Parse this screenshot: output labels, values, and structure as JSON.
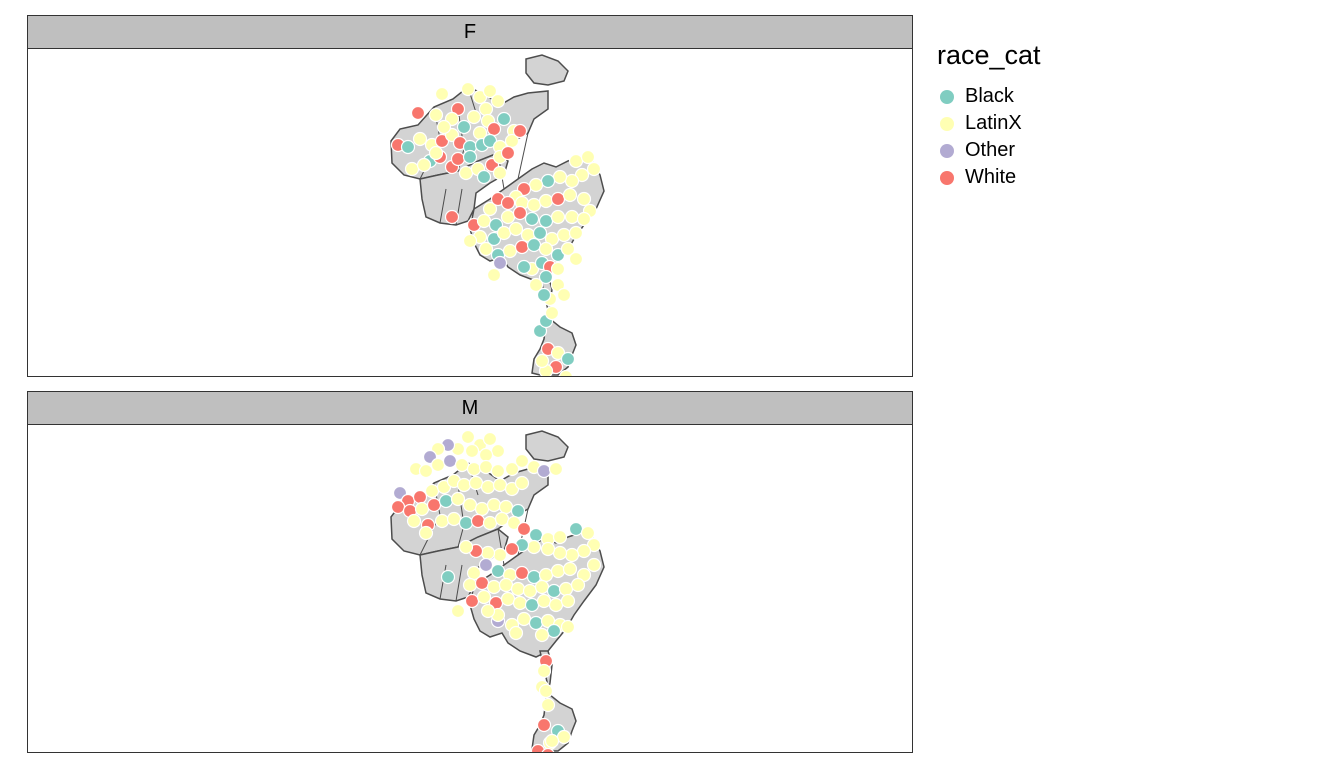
{
  "facets": [
    {
      "label": "F"
    },
    {
      "label": "M"
    }
  ],
  "legend": {
    "title": "race_cat",
    "items": [
      {
        "label": "Black",
        "color": "#80cdc1"
      },
      {
        "label": "LatinX",
        "color": "#ffffb3"
      },
      {
        "label": "Other",
        "color": "#b2abd2"
      },
      {
        "label": "White",
        "color": "#f8766d"
      }
    ]
  },
  "map_style": {
    "polygon_fill": "#d3d3d3",
    "polygon_stroke": "#4d4d4d",
    "point_stroke": "#ffffff"
  }
}
